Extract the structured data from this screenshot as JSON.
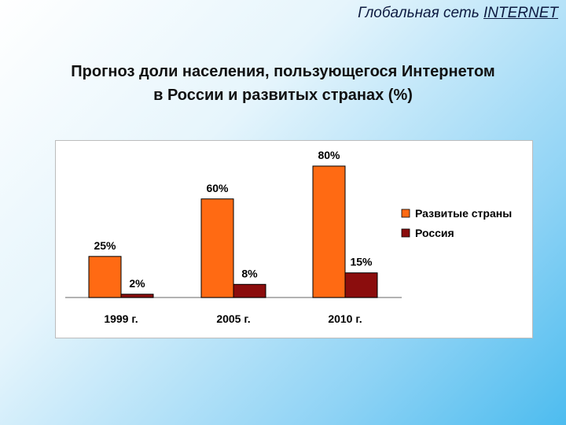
{
  "header": {
    "prefix": "Глобальная сеть ",
    "highlight": "INTERNET"
  },
  "title": {
    "line1": "Прогноз доли населения, пользующегося Интернетом",
    "line2": "в России и развитых странах (%)"
  },
  "colors": {
    "developed": "#ff6a13",
    "russia": "#8b0d0d"
  },
  "chart_data": {
    "type": "bar",
    "categories": [
      "1999 г.",
      "2005 г.",
      "2010 г."
    ],
    "series": [
      {
        "name": "Развитые страны",
        "values": [
          25,
          60,
          80
        ],
        "labels": [
          "25%",
          "60%",
          "80%"
        ]
      },
      {
        "name": "Россия",
        "values": [
          2,
          8,
          15
        ],
        "labels": [
          "2%",
          "8%",
          "15%"
        ]
      }
    ],
    "ylim": [
      0,
      80
    ],
    "legend_position": "right",
    "grid": false
  }
}
